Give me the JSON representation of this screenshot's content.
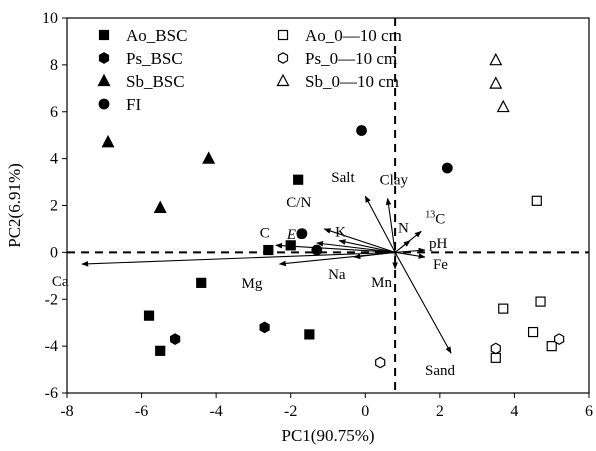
{
  "chart_data": {
    "type": "scatter",
    "xlabel": "PC1(90.75%)",
    "ylabel": "PC2(6.91%)",
    "xlim": [
      -8,
      6
    ],
    "ylim": [
      -6,
      10
    ],
    "xticks": [
      -8,
      -6,
      -4,
      -2,
      0,
      2,
      4,
      6
    ],
    "yticks": [
      -6,
      -4,
      -2,
      0,
      2,
      4,
      6,
      8,
      10
    ],
    "grid": false,
    "legend_position": "top",
    "reference_lines": {
      "x": 0.8,
      "y": 0,
      "style": "dashed"
    },
    "series": [
      {
        "name": "Ao_BSC",
        "marker": "square",
        "filled": true,
        "points": [
          [
            -2.6,
            0.1
          ],
          [
            -2.0,
            0.3
          ],
          [
            -1.8,
            3.1
          ],
          [
            -1.5,
            -3.5
          ],
          [
            -4.4,
            -1.3
          ],
          [
            -5.8,
            -2.7
          ],
          [
            -5.5,
            -4.2
          ]
        ]
      },
      {
        "name": "Ps_BSC",
        "marker": "hexagon",
        "filled": true,
        "points": [
          [
            -5.1,
            -3.7
          ],
          [
            -2.7,
            -3.2
          ]
        ]
      },
      {
        "name": "Sb_BSC",
        "marker": "triangle",
        "filled": true,
        "points": [
          [
            -6.9,
            4.7
          ],
          [
            -5.5,
            1.9
          ],
          [
            -4.2,
            4.0
          ]
        ]
      },
      {
        "name": "FI",
        "marker": "circle",
        "filled": true,
        "points": [
          [
            -0.1,
            5.2
          ],
          [
            2.2,
            3.6
          ],
          [
            -1.7,
            0.8
          ],
          [
            -1.3,
            0.1
          ]
        ]
      },
      {
        "name": "Ao_0—10 cm",
        "marker": "square",
        "filled": false,
        "points": [
          [
            4.6,
            2.2
          ],
          [
            3.7,
            -2.4
          ],
          [
            4.7,
            -2.1
          ],
          [
            4.5,
            -3.4
          ],
          [
            5.0,
            -4.0
          ],
          [
            3.5,
            -4.5
          ]
        ]
      },
      {
        "name": "Ps_0—10 cm",
        "marker": "hexagon",
        "filled": false,
        "points": [
          [
            0.4,
            -4.7
          ],
          [
            3.5,
            -4.1
          ],
          [
            5.2,
            -3.7
          ]
        ]
      },
      {
        "name": "Sb_0—10 cm",
        "marker": "triangle",
        "filled": false,
        "points": [
          [
            3.5,
            8.2
          ],
          [
            3.5,
            7.2
          ],
          [
            3.7,
            6.2
          ]
        ]
      }
    ],
    "loadings": [
      {
        "label": "Ca",
        "x": -7.6,
        "y": -0.5
      },
      {
        "label": "Mg",
        "x": -2.3,
        "y": -0.5
      },
      {
        "label": "C",
        "x": -2.4,
        "y": 0.3
      },
      {
        "label": "EC",
        "x": -1.3,
        "y": 0.4
      },
      {
        "label": "C/N",
        "x": -1.1,
        "y": 1.0
      },
      {
        "label": "K",
        "x": -0.7,
        "y": 0.5
      },
      {
        "label": "Na",
        "x": -0.3,
        "y": -0.2
      },
      {
        "label": "Mn",
        "x": 0.8,
        "y": -0.7
      },
      {
        "label": "Salt",
        "x": 0.0,
        "y": 2.4
      },
      {
        "label": "Clay",
        "x": 0.6,
        "y": 2.3
      },
      {
        "label": "N",
        "x": 1.2,
        "y": 0.5
      },
      {
        "label": "C",
        "x": 1.5,
        "y": 0.9,
        "superscript": "13"
      },
      {
        "label": "pH",
        "x": 1.6,
        "y": 0.1
      },
      {
        "label": "Fe",
        "x": 1.6,
        "y": -0.2
      },
      {
        "label": "Sand",
        "x": 2.3,
        "y": -4.3
      }
    ]
  }
}
